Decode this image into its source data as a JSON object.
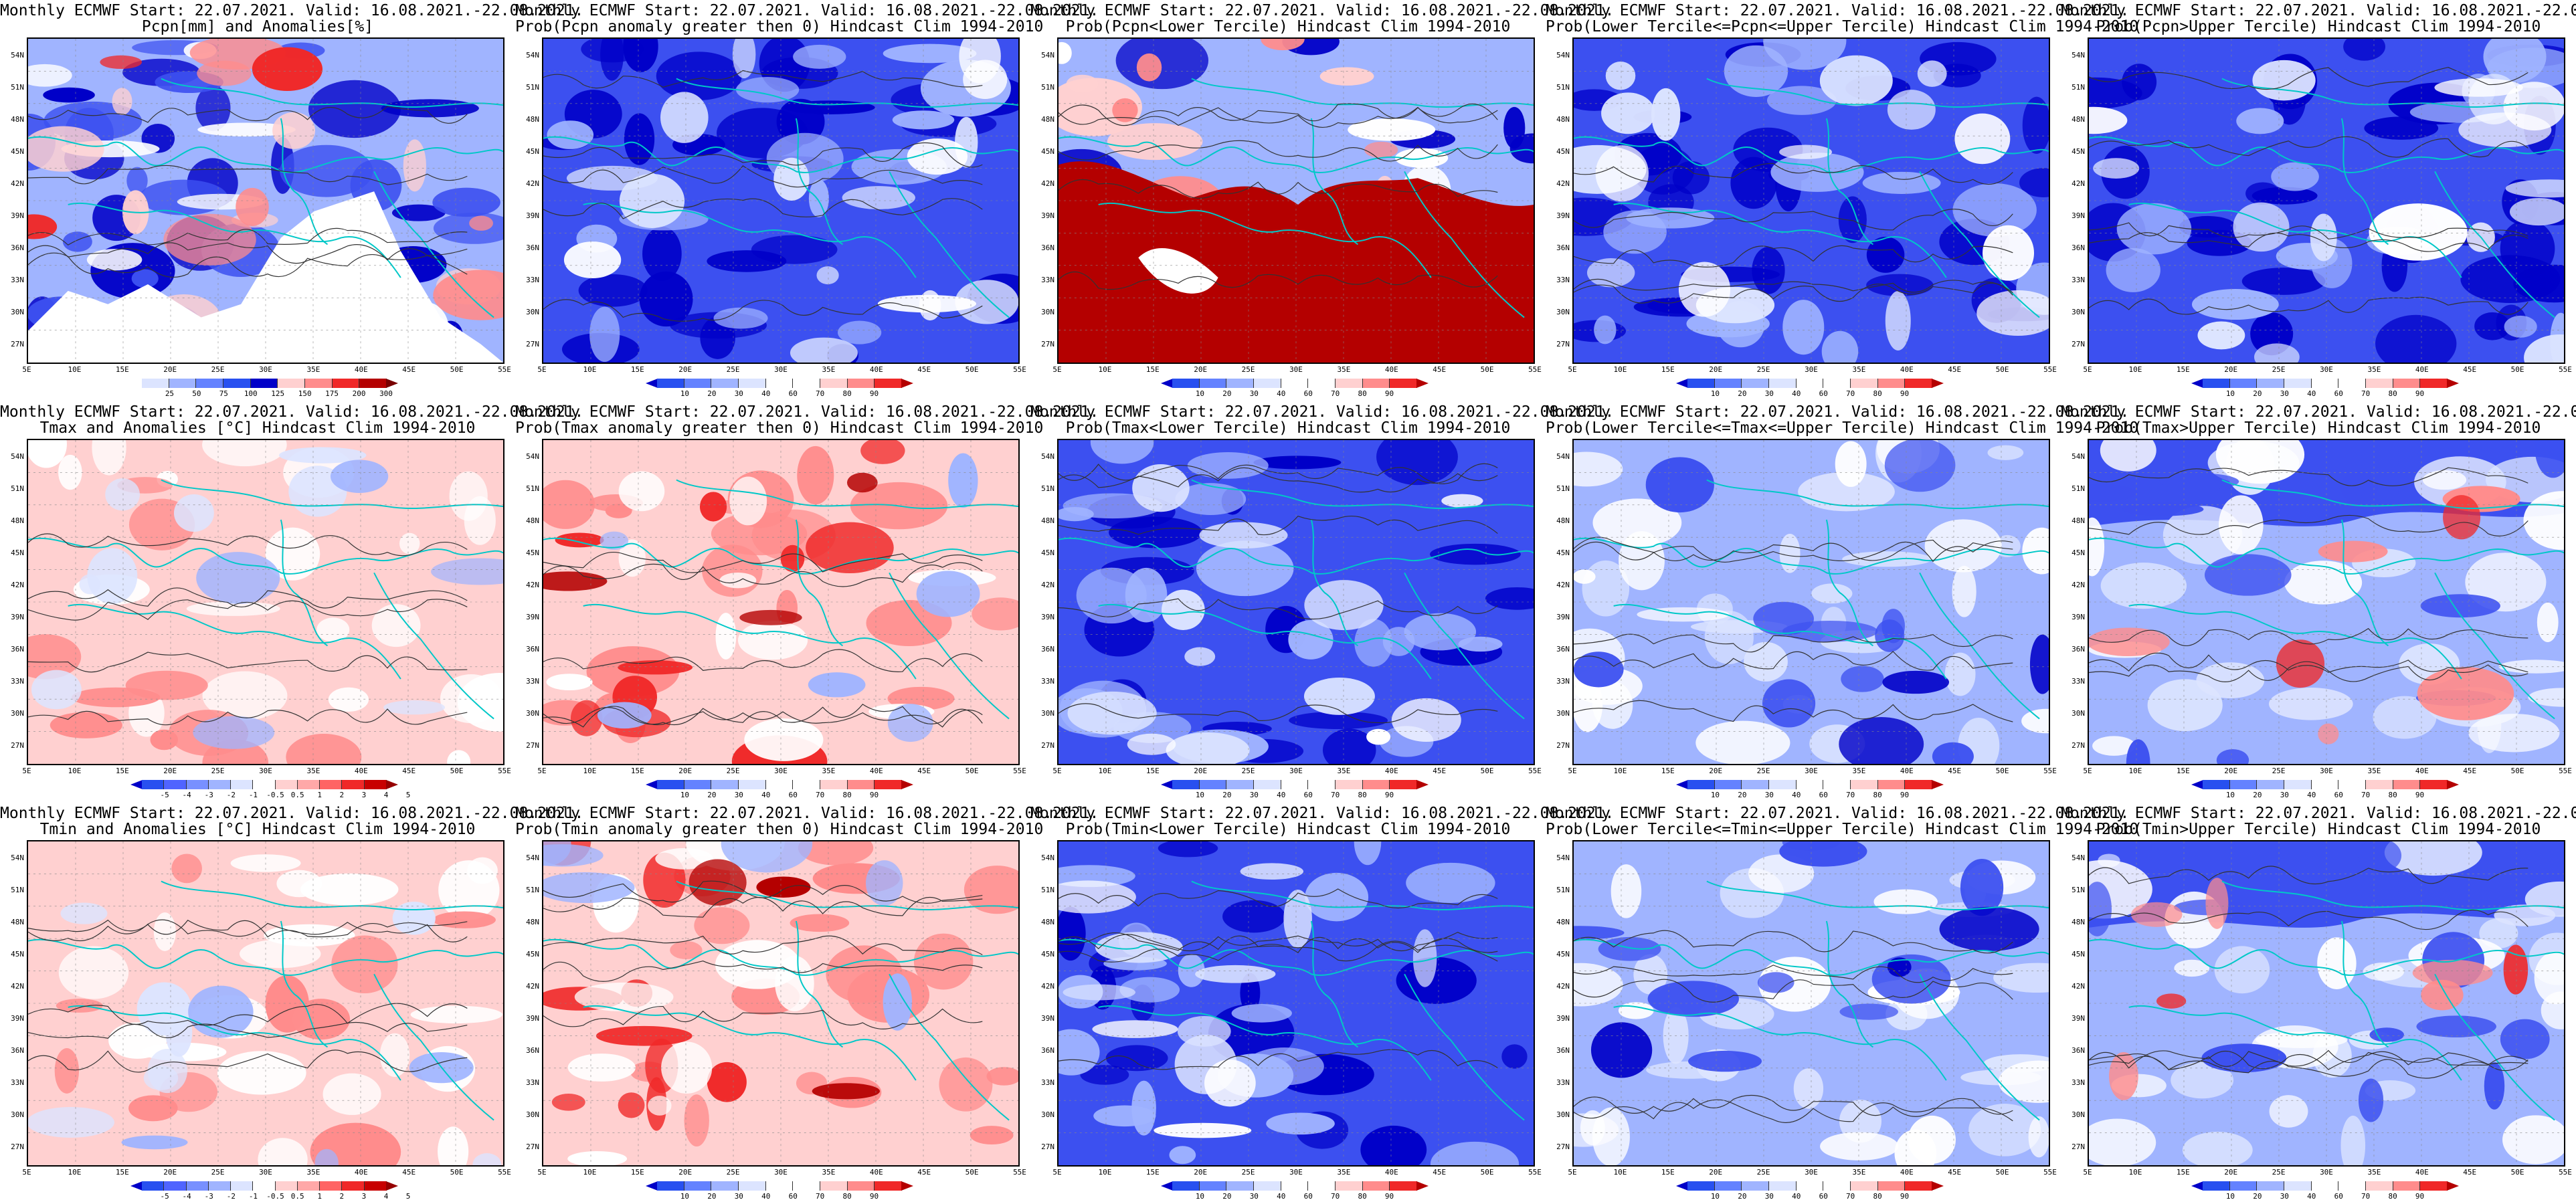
{
  "figure": {
    "title_line1": "Monthly ECMWF Start: 22.07.2021. Valid: 16.08.2021.-22.08.2021.",
    "lat_labels": [
      "54N",
      "51N",
      "48N",
      "45N",
      "42N",
      "39N",
      "36N",
      "33N",
      "30N",
      "27N"
    ],
    "lon_labels": [
      "5E",
      "10E",
      "15E",
      "20E",
      "25E",
      "30E",
      "35E",
      "40E",
      "45E",
      "50E",
      "55E"
    ],
    "colors": {
      "strong_blue": "#0000c8",
      "mid_blue": "#3c50f0",
      "light_blue": "#a0b4ff",
      "pale_blue": "#dce4ff",
      "white": "#ffffff",
      "pale_red": "#ffd0d0",
      "light_red": "#ff8c8c",
      "mid_red": "#f02828",
      "dark_red": "#b40000",
      "coast": "#00c8c8",
      "contour": "#333333"
    },
    "rows": [
      {
        "panels": [
          {
            "title_line2": "Pcpn[mm] and Anomalies[%]",
            "scale": "anom_pcp",
            "style": "pcp_anom"
          },
          {
            "title_line2": "Prob(Pcpn anomaly greater then 0) Hindcast Clim 1994-2010",
            "scale": "prob",
            "style": "blue_strong"
          },
          {
            "title_line2": "Prob(Pcpn<Lower Tercile) Hindcast Clim 1994-2010",
            "scale": "prob",
            "style": "red_south"
          },
          {
            "title_line2": "Prob(Lower Tercile<=Pcpn<=Upper Tercile) Hindcast Clim 1994-2010",
            "scale": "prob",
            "style": "blue_strong"
          },
          {
            "title_line2": "Prob(Pcpn>Upper Tercile) Hindcast Clim 1994-2010",
            "scale": "prob",
            "style": "blue_strong"
          }
        ]
      },
      {
        "panels": [
          {
            "title_line2": "Tmax and Anomalies [°C] Hindcast Clim 1994-2010",
            "scale": "anom_t",
            "style": "red_light"
          },
          {
            "title_line2": "Prob(Tmax anomaly greater then 0) Hindcast Clim 1994-2010",
            "scale": "prob",
            "style": "red_mid"
          },
          {
            "title_line2": "Prob(Tmax<Lower Tercile) Hindcast Clim 1994-2010",
            "scale": "prob",
            "style": "blue_mid"
          },
          {
            "title_line2": "Prob(Lower Tercile<=Tmax<=Upper Tercile) Hindcast Clim 1994-2010",
            "scale": "prob",
            "style": "blue_light"
          },
          {
            "title_line2": "Prob(Tmax>Upper Tercile) Hindcast Clim 1994-2010",
            "scale": "prob",
            "style": "blue_north"
          }
        ]
      },
      {
        "panels": [
          {
            "title_line2": "Tmin and Anomalies [°C] Hindcast Clim 1994-2010",
            "scale": "anom_t",
            "style": "red_light"
          },
          {
            "title_line2": "Prob(Tmin anomaly greater then 0) Hindcast Clim 1994-2010",
            "scale": "prob",
            "style": "red_mid"
          },
          {
            "title_line2": "Prob(Tmin<Lower Tercile) Hindcast Clim 1994-2010",
            "scale": "prob",
            "style": "blue_mid"
          },
          {
            "title_line2": "Prob(Lower Tercile<=Tmin<=Upper Tercile) Hindcast Clim 1994-2010",
            "scale": "prob",
            "style": "blue_light"
          },
          {
            "title_line2": "Prob(Tmin>Upper Tercile) Hindcast Clim 1994-2010",
            "scale": "prob",
            "style": "blue_north"
          }
        ]
      }
    ],
    "scales": {
      "prob": {
        "ticks": [
          "10",
          "20",
          "30",
          "40",
          "60",
          "70",
          "80",
          "90"
        ],
        "colors": [
          "#0000c8",
          "#2850f0",
          "#6482ff",
          "#a0b4ff",
          "#dce4ff",
          "#ffffff",
          "#ffffff",
          "#ffd0d0",
          "#ff8c8c",
          "#f02828",
          "#b40000"
        ]
      },
      "anom_t": {
        "ticks": [
          "-5",
          "-4",
          "-3",
          "-2",
          "-1",
          "-0.5",
          "0.5",
          "1",
          "2",
          "3",
          "4",
          "5"
        ],
        "colors": [
          "#0000c8",
          "#2850f0",
          "#5064ff",
          "#7890ff",
          "#a0b4ff",
          "#dce4ff",
          "#ffffff",
          "#ffd0d0",
          "#ffa8a8",
          "#ff6464",
          "#f02828",
          "#c80000",
          "#960000"
        ]
      },
      "anom_pcp": {
        "ticks": [
          "25",
          "50",
          "75",
          "100",
          "125",
          "150",
          "175",
          "200",
          "300"
        ],
        "colors": [
          "#ffffff",
          "#dce4ff",
          "#a0b4ff",
          "#6482ff",
          "#2850f0",
          "#0000c8",
          "#ffd0d0",
          "#ff8c8c",
          "#f02828",
          "#b40000",
          "#780000"
        ]
      }
    }
  }
}
